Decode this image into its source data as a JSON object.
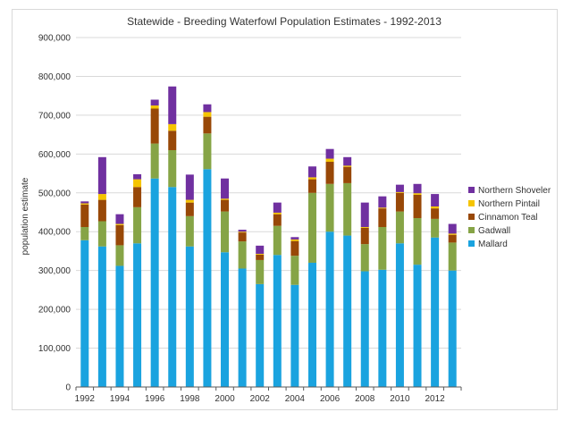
{
  "chart_data": {
    "type": "bar",
    "stacked": true,
    "title": "Statewide - Breeding Waterfowl Population Estimates - 1992-2013",
    "xlabel": "",
    "ylabel": "population estimate",
    "ylim": [
      0,
      900000
    ],
    "yticks": [
      "0",
      "100,000",
      "200,000",
      "300,000",
      "400,000",
      "500,000",
      "600,000",
      "700,000",
      "800,000",
      "900,000"
    ],
    "xticks": [
      "1992",
      "1994",
      "1996",
      "1998",
      "2000",
      "2002",
      "2004",
      "2006",
      "2008",
      "2010",
      "2012"
    ],
    "grid": true,
    "legend_position": "right",
    "categories": [
      1992,
      1993,
      1994,
      1995,
      1996,
      1997,
      1998,
      1999,
      2000,
      2001,
      2002,
      2003,
      2004,
      2005,
      2006,
      2007,
      2008,
      2009,
      2010,
      2011,
      2012,
      2013
    ],
    "series": [
      {
        "name": "Mallard",
        "color": "#1aa3df",
        "values": [
          378000,
          362000,
          312000,
          370000,
          537000,
          515000,
          362000,
          561000,
          347000,
          305000,
          265000,
          340000,
          263000,
          320000,
          400000,
          390000,
          298000,
          302000,
          370000,
          315000,
          385000,
          300000
        ]
      },
      {
        "name": "Gadwall",
        "color": "#86a446",
        "values": [
          34000,
          65000,
          53000,
          93000,
          90000,
          95000,
          78000,
          92000,
          105000,
          70000,
          62000,
          75000,
          75000,
          180000,
          123000,
          135000,
          70000,
          110000,
          82000,
          120000,
          48000,
          72000
        ]
      },
      {
        "name": "Cinnamon Teal",
        "color": "#984807",
        "values": [
          58000,
          55000,
          52000,
          52000,
          90000,
          50000,
          35000,
          43000,
          30000,
          23000,
          14000,
          30000,
          38000,
          35000,
          57000,
          42000,
          42000,
          48000,
          48000,
          60000,
          27000,
          20000
        ]
      },
      {
        "name": "Northern Pintail",
        "color": "#f5c400",
        "values": [
          3000,
          15000,
          3000,
          20000,
          8000,
          17000,
          7000,
          12000,
          3000,
          2000,
          2000,
          4000,
          4000,
          5000,
          8000,
          3000,
          2000,
          2000,
          2000,
          4000,
          5000,
          3000
        ]
      },
      {
        "name": "Northern Shoveler",
        "color": "#7030a0",
        "values": [
          5000,
          95000,
          25000,
          13000,
          15000,
          97000,
          65000,
          20000,
          52000,
          5000,
          21000,
          26000,
          6000,
          28000,
          25000,
          22000,
          63000,
          29000,
          19000,
          24000,
          32000,
          25000
        ]
      }
    ]
  }
}
